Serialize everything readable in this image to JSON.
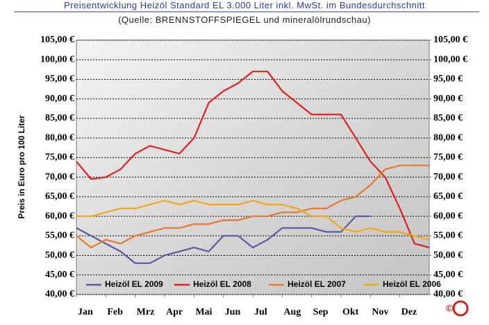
{
  "chart_data": {
    "type": "line",
    "title": "Preisentwicklung Heizöl Standard EL 3.000 Liter inkl. MwSt. im Bundesdurchschnitt",
    "subtitle": "(Quelle: BRENNSTOFFSPIEGEL und mineralölrundschau)",
    "ylabel": "Preis in Euro pro 100 Liter",
    "copyright": "©",
    "x": [
      0,
      0.5,
      1,
      1.5,
      2,
      2.5,
      3,
      3.5,
      4,
      4.5,
      5,
      5.5,
      6,
      6.5,
      7,
      7.5,
      8,
      8.5,
      9,
      9.5,
      10,
      10.5,
      11,
      11.5,
      12
    ],
    "xlim": [
      0,
      12
    ],
    "xticks": [
      {
        "value": 0,
        "label": "Jan"
      },
      {
        "value": 1,
        "label": "Feb"
      },
      {
        "value": 2,
        "label": "Mrz"
      },
      {
        "value": 3,
        "label": "Apr"
      },
      {
        "value": 4,
        "label": "Mai"
      },
      {
        "value": 5,
        "label": "Jun"
      },
      {
        "value": 6,
        "label": "Jul"
      },
      {
        "value": 7,
        "label": "Aug"
      },
      {
        "value": 8,
        "label": "Sep"
      },
      {
        "value": 9,
        "label": "Okt"
      },
      {
        "value": 10,
        "label": "Nov"
      },
      {
        "value": 11,
        "label": "Dez"
      }
    ],
    "ylim": [
      40,
      105
    ],
    "yticks": [
      {
        "value": 40,
        "label": "40,00 €"
      },
      {
        "value": 45,
        "label": "45,00 €"
      },
      {
        "value": 50,
        "label": "50,00 €"
      },
      {
        "value": 55,
        "label": "55,00 €"
      },
      {
        "value": 60,
        "label": "60,00 €"
      },
      {
        "value": 65,
        "label": "65,00 €"
      },
      {
        "value": 70,
        "label": "70,00 €"
      },
      {
        "value": 75,
        "label": "75,00 €"
      },
      {
        "value": 80,
        "label": "80,00 €"
      },
      {
        "value": 85,
        "label": "85,00 €"
      },
      {
        "value": 90,
        "label": "90,00 €"
      },
      {
        "value": 95,
        "label": "95,00 €"
      },
      {
        "value": 100,
        "label": "100,00 €"
      },
      {
        "value": 105,
        "label": "105,00 €"
      }
    ],
    "y2lim": [
      40,
      105
    ],
    "y2ticks": [
      {
        "value": 40,
        "label": "40,00 €"
      },
      {
        "value": 45,
        "label": "45,00 €"
      },
      {
        "value": 50,
        "label": "50,00 €"
      },
      {
        "value": 55,
        "label": "55,00 €"
      },
      {
        "value": 60,
        "label": "60,00 €"
      },
      {
        "value": 65,
        "label": "65,00 €"
      },
      {
        "value": 70,
        "label": "70,00 €"
      },
      {
        "value": 75,
        "label": "75,00 €"
      },
      {
        "value": 80,
        "label": "80,00 €"
      },
      {
        "value": 85,
        "label": "85,00 €"
      },
      {
        "value": 90,
        "label": "90,00 €"
      },
      {
        "value": 95,
        "label": "95,00 €"
      },
      {
        "value": 100,
        "label": "100,00 €"
      },
      {
        "value": 105,
        "label": "105,00 €"
      }
    ],
    "grid": true,
    "legend": "bottom",
    "series": [
      {
        "name": "Heizöl EL 2009",
        "color": "#5a5a9e",
        "values": [
          57,
          55,
          53,
          51,
          48,
          48,
          50,
          51,
          52,
          51,
          55,
          55,
          52,
          54,
          57,
          57,
          57,
          56,
          56,
          60,
          60,
          null,
          null,
          null,
          null
        ]
      },
      {
        "name": "Heizöl EL 2008",
        "color": "#e02020",
        "values": [
          74,
          69.5,
          70,
          72,
          76,
          78,
          77,
          76,
          80,
          89,
          92,
          94,
          97,
          97,
          92,
          89,
          86,
          86,
          86,
          80,
          74,
          70,
          62,
          53,
          52
        ]
      },
      {
        "name": "Heizöl EL 2007",
        "color": "#e8782a",
        "values": [
          55,
          52,
          54,
          53,
          55,
          56,
          57,
          57,
          58,
          58,
          59,
          59,
          60,
          60,
          61,
          61,
          62,
          62,
          64,
          65,
          68,
          72,
          73,
          73,
          73
        ]
      },
      {
        "name": "Heizöl EL 2006",
        "color": "#f0a818",
        "values": [
          60,
          60,
          61,
          62,
          62,
          63,
          64,
          63,
          64,
          63,
          63,
          63,
          64,
          63,
          63,
          62,
          60,
          60,
          57,
          56,
          57,
          56,
          56,
          55,
          54
        ]
      }
    ]
  }
}
